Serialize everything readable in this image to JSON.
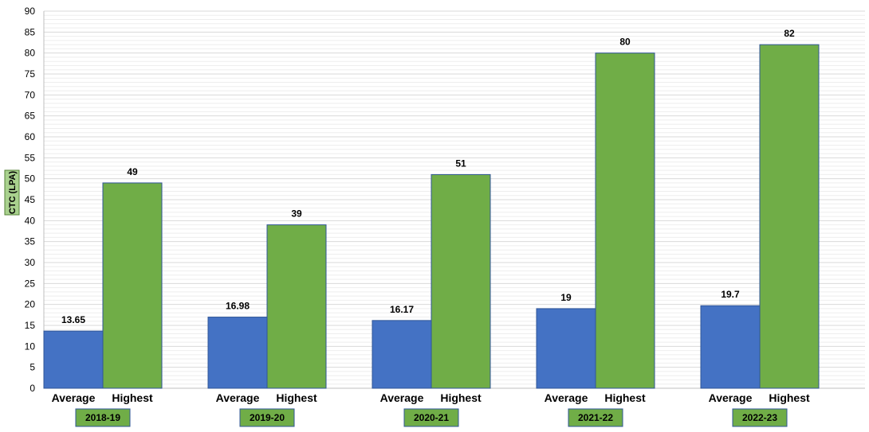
{
  "chart_data": {
    "type": "bar",
    "title": "",
    "ylabel": "CTC (LPA)",
    "xlabel": "",
    "ylim": [
      0,
      90
    ],
    "ytick_step": 5,
    "grid": true,
    "legend": "none",
    "groups": [
      {
        "year": "2018-19",
        "bars": [
          {
            "label": "Average",
            "value": 13.65,
            "display": "13.65"
          },
          {
            "label": "Highest",
            "value": 49,
            "display": "49"
          }
        ]
      },
      {
        "year": "2019-20",
        "bars": [
          {
            "label": "Average",
            "value": 16.98,
            "display": "16.98"
          },
          {
            "label": "Highest",
            "value": 39,
            "display": "39"
          }
        ]
      },
      {
        "year": "2020-21",
        "bars": [
          {
            "label": "Average",
            "value": 16.17,
            "display": "16.17"
          },
          {
            "label": "Highest",
            "value": 51,
            "display": "51"
          }
        ]
      },
      {
        "year": "2021-22",
        "bars": [
          {
            "label": "Average",
            "value": 19,
            "display": "19"
          },
          {
            "label": "Highest",
            "value": 80,
            "display": "80"
          }
        ]
      },
      {
        "year": "2022-23",
        "bars": [
          {
            "label": "Average",
            "value": 19.7,
            "display": "19.7"
          },
          {
            "label": "Highest",
            "value": 82,
            "display": "82"
          }
        ]
      }
    ],
    "colors": {
      "Average": "#4472C4",
      "Highest": "#70AD47",
      "bar_border": "#2F5597",
      "year_box_fill": "#70AD47",
      "year_box_border": "#2F5597",
      "ylabel_box_fill": "#A9D18E",
      "ylabel_box_border": "#548235",
      "grid": "#D9D9D9"
    }
  }
}
